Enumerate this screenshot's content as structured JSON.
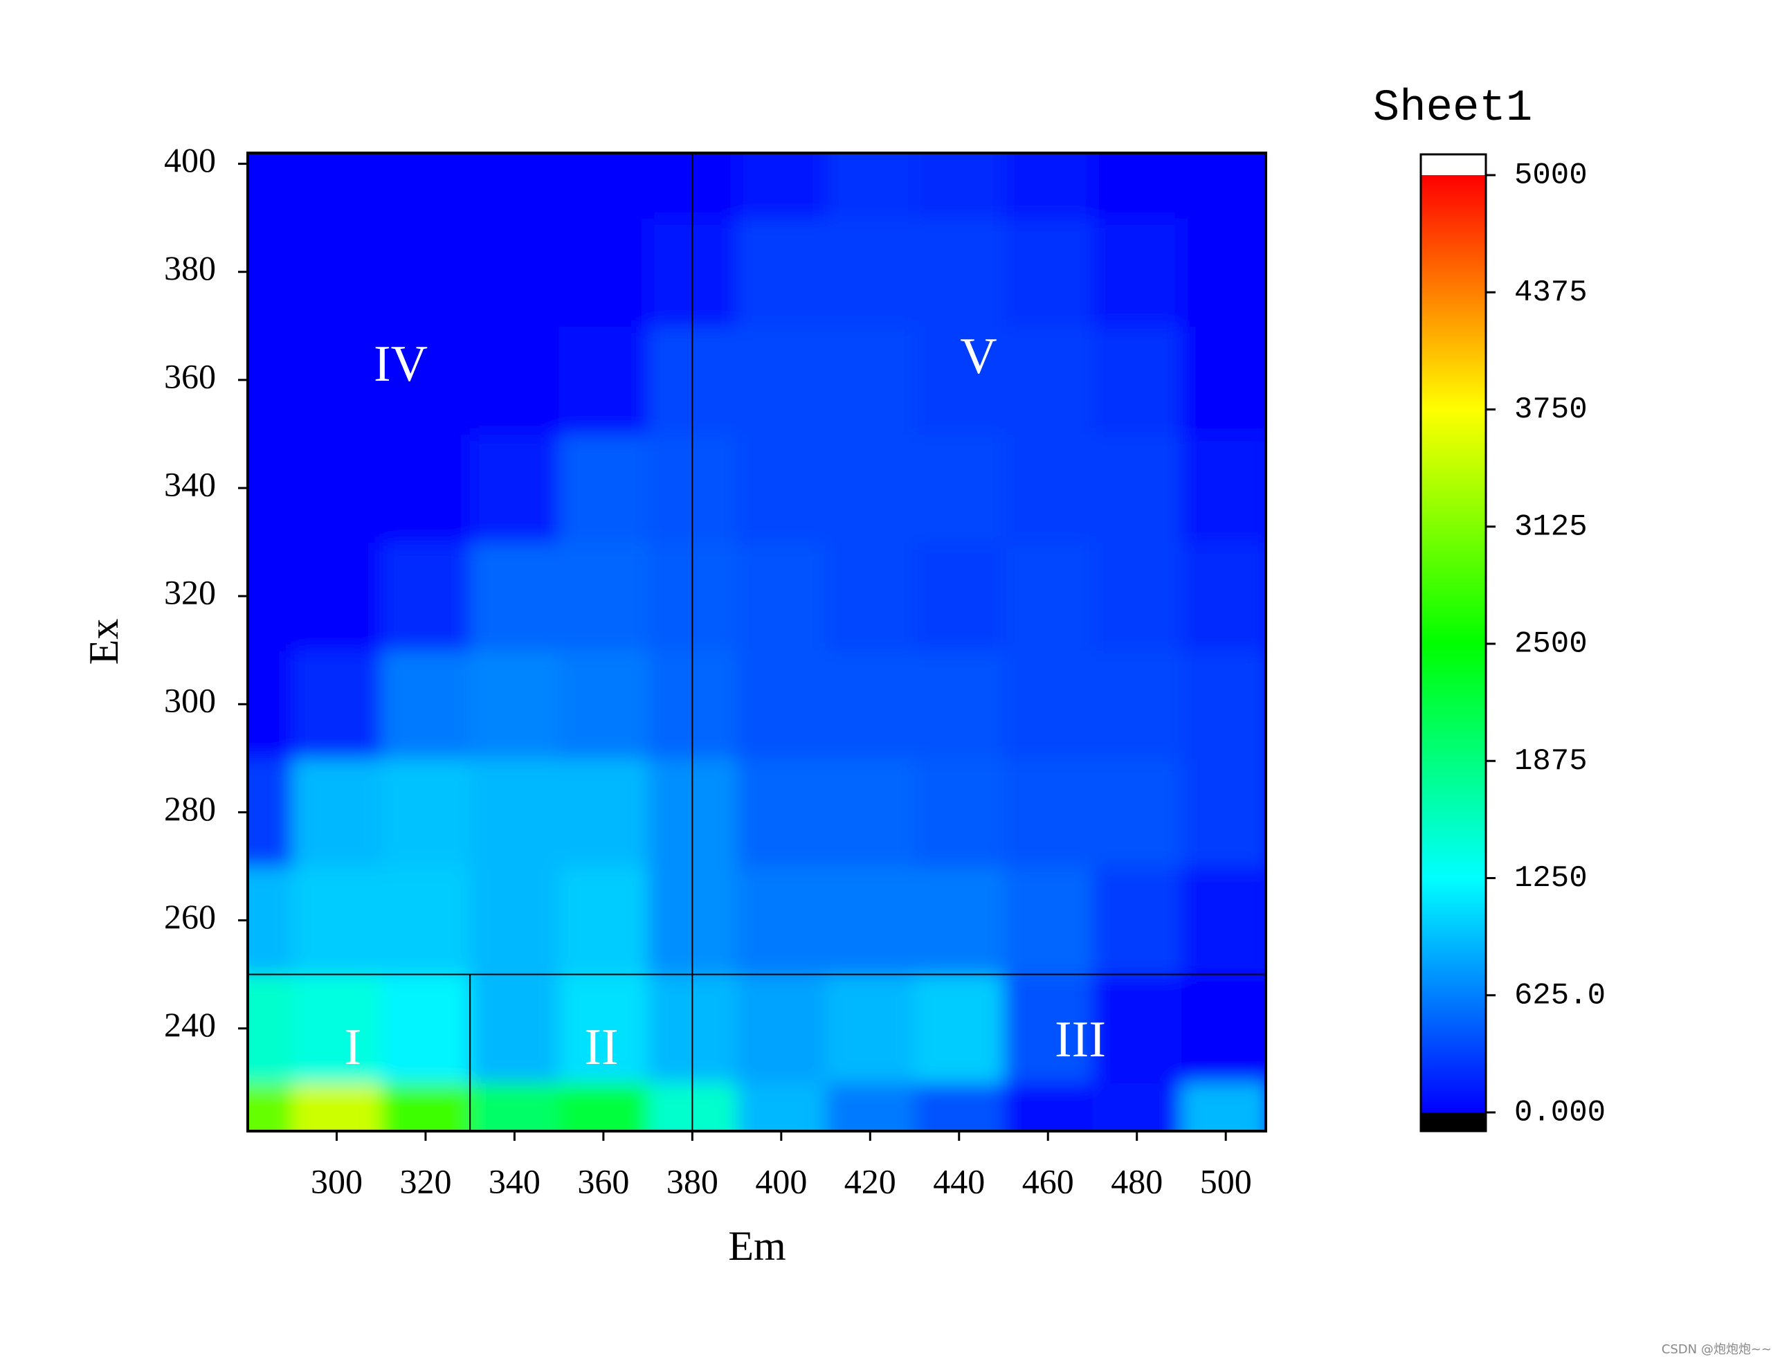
{
  "chart_data": {
    "type": "contour",
    "x_label": "Em",
    "y_label": "Ex",
    "colorbar_title": "Sheet1",
    "x": [
      280,
      300,
      320,
      340,
      360,
      380,
      400,
      420,
      440,
      460,
      480,
      500
    ],
    "y": [
      220,
      240,
      260,
      280,
      300,
      320,
      340,
      360,
      380,
      400
    ],
    "z": [
      [
        3000,
        3500,
        2800,
        2000,
        2200,
        1500,
        900,
        600,
        400,
        50,
        100,
        900
      ],
      [
        1500,
        1400,
        1200,
        900,
        1100,
        900,
        800,
        900,
        1000,
        400,
        50,
        0
      ],
      [
        900,
        1000,
        1000,
        900,
        1000,
        700,
        600,
        600,
        600,
        500,
        300,
        100
      ],
      [
        300,
        900,
        950,
        900,
        900,
        700,
        500,
        500,
        450,
        400,
        400,
        300
      ],
      [
        0,
        200,
        600,
        650,
        600,
        500,
        400,
        400,
        400,
        350,
        350,
        300
      ],
      [
        0,
        0,
        200,
        500,
        500,
        450,
        400,
        350,
        300,
        350,
        300,
        200
      ],
      [
        0,
        0,
        0,
        150,
        450,
        400,
        350,
        350,
        350,
        300,
        300,
        100
      ],
      [
        0,
        0,
        0,
        0,
        50,
        350,
        350,
        350,
        300,
        300,
        250,
        0
      ],
      [
        0,
        0,
        0,
        0,
        0,
        100,
        300,
        300,
        300,
        250,
        100,
        0
      ],
      [
        0,
        0,
        0,
        0,
        0,
        0,
        100,
        250,
        200,
        100,
        0,
        0
      ]
    ],
    "xlim": [
      280,
      509
    ],
    "ylim": [
      221,
      402
    ],
    "xticks": [
      300,
      320,
      340,
      360,
      380,
      400,
      420,
      440,
      460,
      480,
      500
    ],
    "yticks": [
      240,
      260,
      280,
      300,
      320,
      340,
      360,
      380,
      400
    ],
    "zlim": [
      0,
      5000
    ],
    "zticks": [
      {
        "value": 0,
        "label": "0.000"
      },
      {
        "value": 625,
        "label": "625.0"
      },
      1250,
      1875,
      2500,
      3125,
      3750,
      4375,
      5000
    ],
    "colormap": [
      "#0000ff",
      "#00ffff",
      "#00ff00",
      "#ffff00",
      "#ff0000"
    ],
    "under_color": "#000000",
    "over_color": "#ffffff",
    "lines": [
      {
        "x": [
          380,
          380
        ],
        "y": [
          221,
          402
        ]
      },
      {
        "x": [
          280,
          509
        ],
        "y": [
          250,
          250
        ]
      },
      {
        "x": [
          330,
          330
        ],
        "y": [
          221,
          250
        ]
      }
    ],
    "annotations": [
      "I",
      "II",
      "III",
      "IV",
      "V"
    ],
    "watermark": "CSDN @炮炮炮~~"
  }
}
